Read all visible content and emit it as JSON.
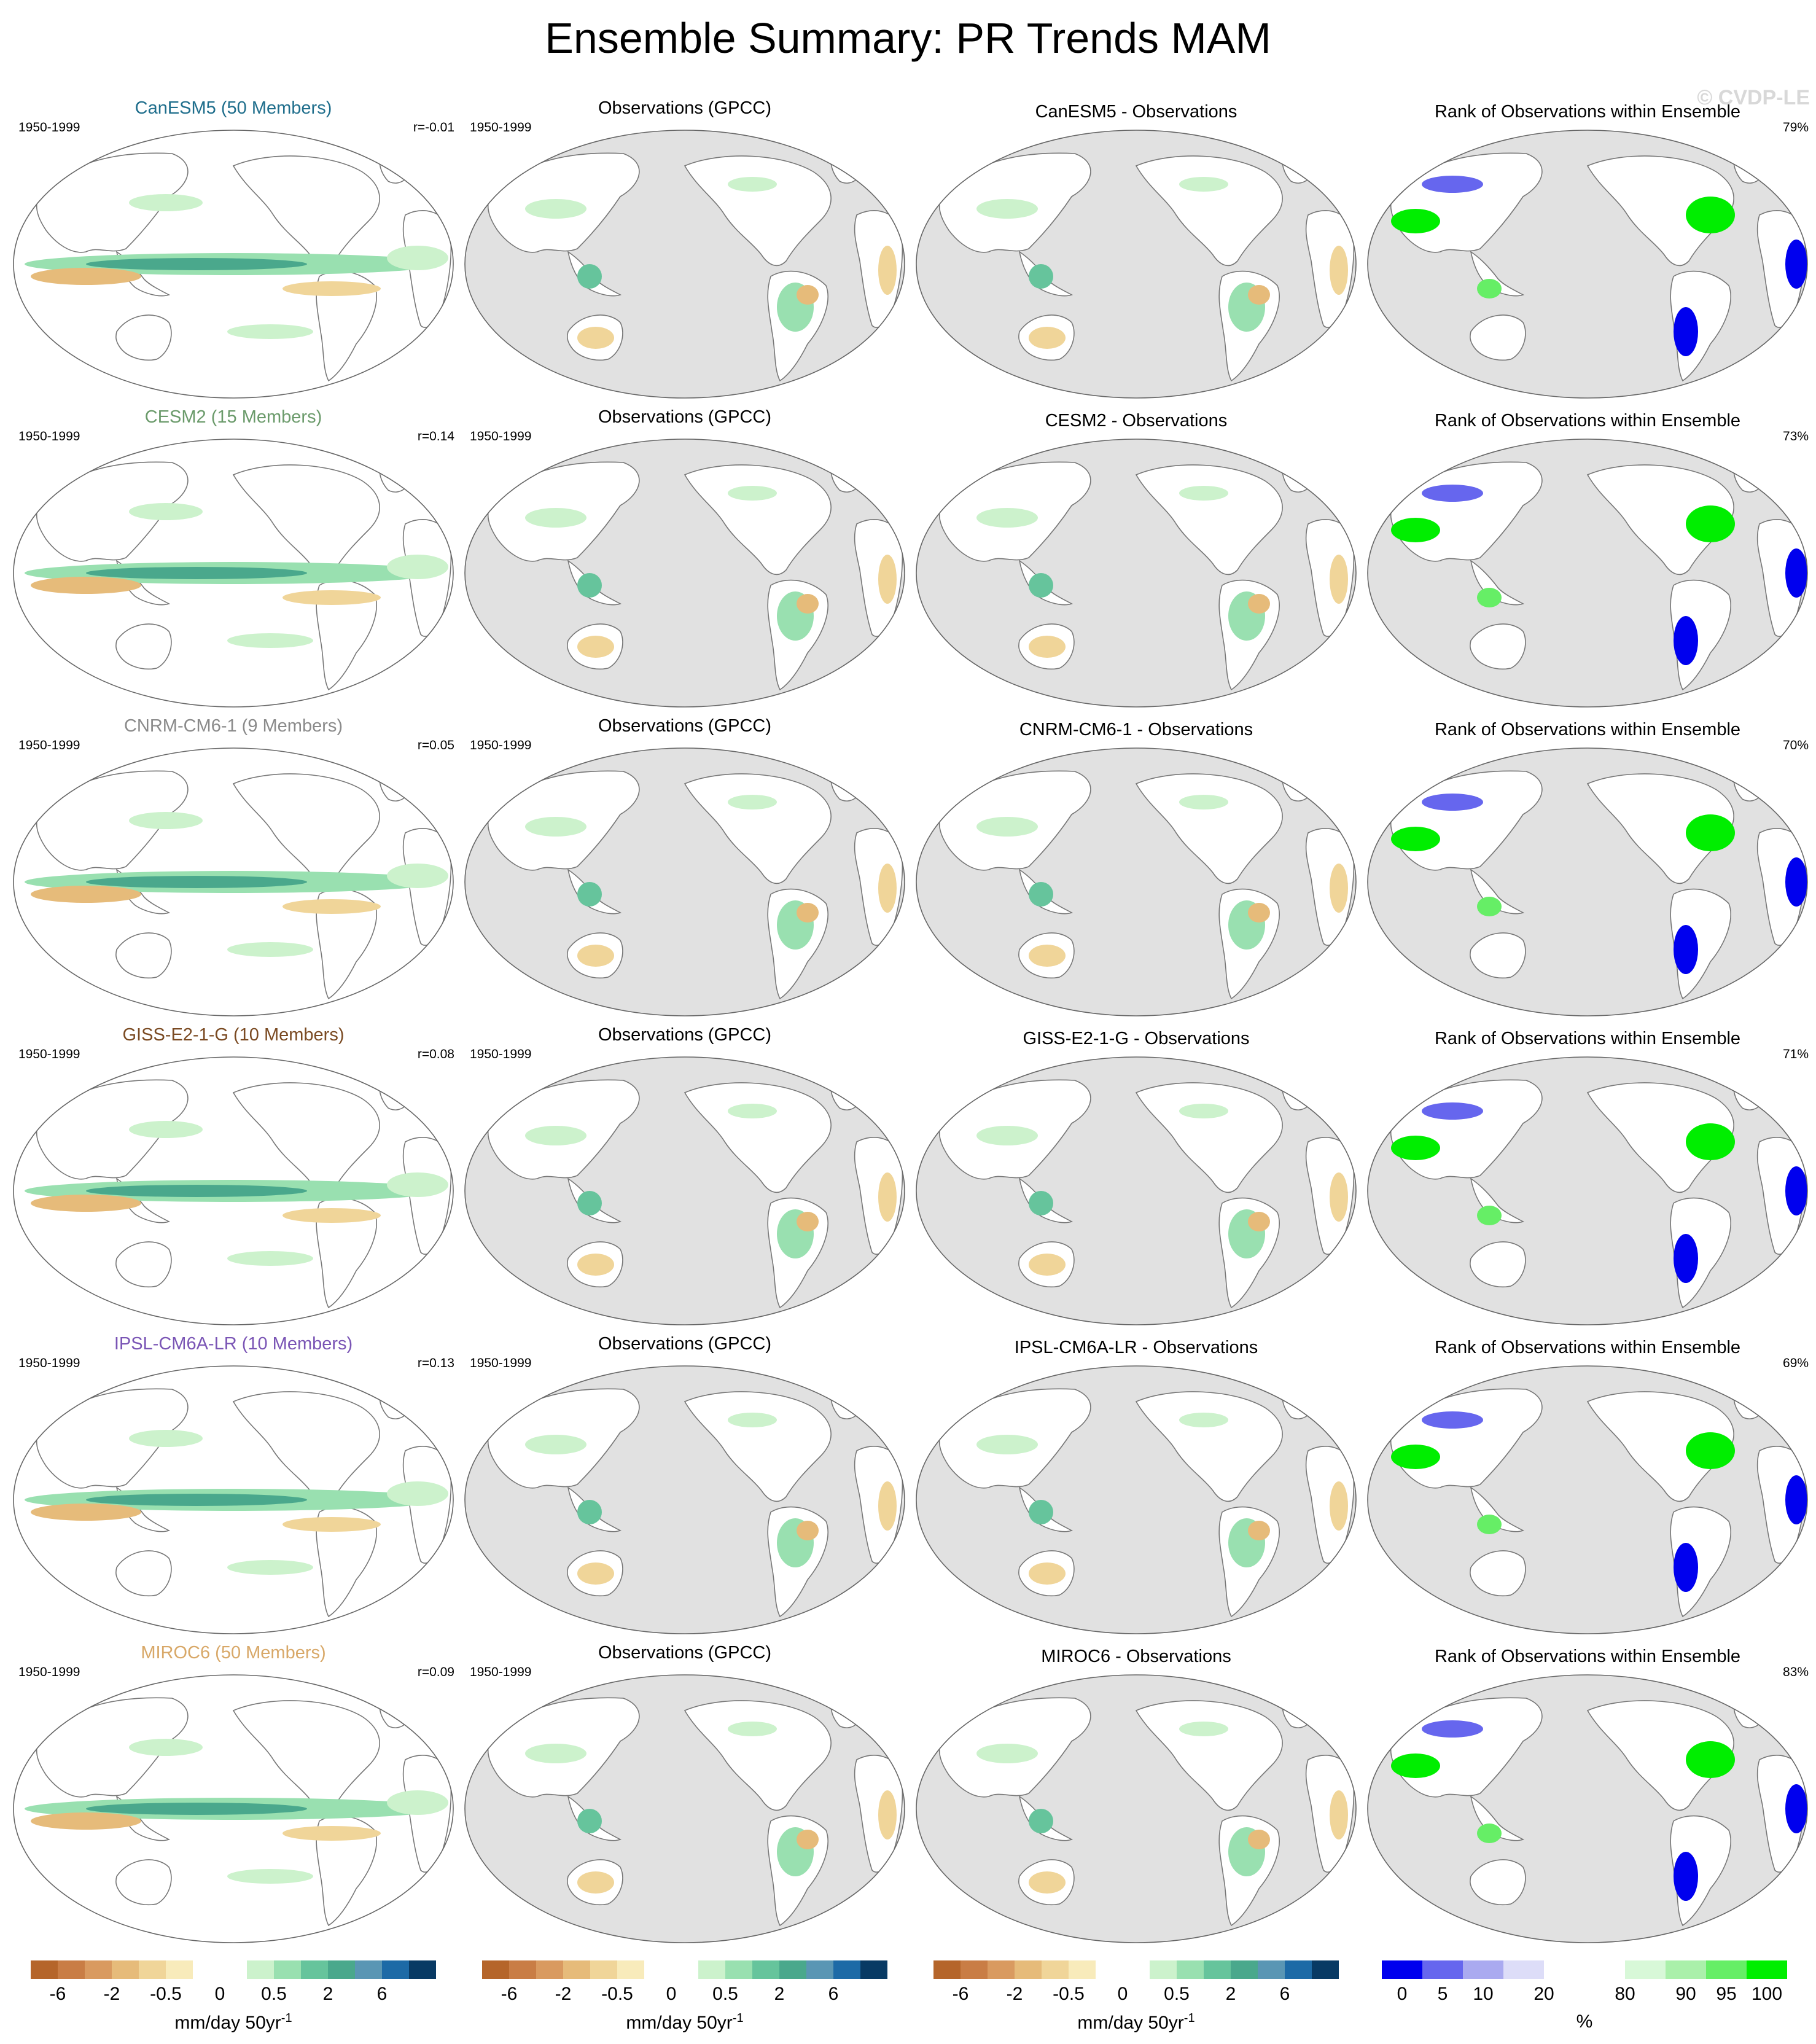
{
  "title": "Ensemble Summary: PR Trends MAM",
  "watermark": "© CVDP-LE",
  "period": "1950-1999",
  "obs_title": "Observations (GPCC)",
  "rank_title": "Rank of Observations within Ensemble",
  "rows": [
    {
      "model_title": "CanESM5 (50 Members)",
      "model_color": "#1f6e8c",
      "r": "r=-0.01",
      "diff_title": "CanESM5 - Observations",
      "rank_pct": "79%"
    },
    {
      "model_title": "CESM2 (15 Members)",
      "model_color": "#6a9a6a",
      "r": "r=0.14",
      "diff_title": "CESM2 - Observations",
      "rank_pct": "73%"
    },
    {
      "model_title": "CNRM-CM6-1 (9 Members)",
      "model_color": "#8a8a8a",
      "r": "r=0.05",
      "diff_title": "CNRM-CM6-1 - Observations",
      "rank_pct": "70%"
    },
    {
      "model_title": "GISS-E2-1-G (10 Members)",
      "model_color": "#7a4a22",
      "r": "r=0.08",
      "diff_title": "GISS-E2-1-G - Observations",
      "rank_pct": "71%"
    },
    {
      "model_title": "IPSL-CM6A-LR (10 Members)",
      "model_color": "#7a55b5",
      "r": "r=0.13",
      "diff_title": "IPSL-CM6A-LR - Observations",
      "rank_pct": "69%"
    },
    {
      "model_title": "MIROC6 (50 Members)",
      "model_color": "#d8a868",
      "r": "r=0.09",
      "diff_title": "MIROC6 - Observations",
      "rank_pct": "83%"
    }
  ],
  "trend_colorbar": {
    "label": "mm/day 50yr",
    "label_sup": "-1",
    "colors": [
      "#b5652a",
      "#c97d45",
      "#d99a60",
      "#e6bb7a",
      "#f0d599",
      "#f8ebbb",
      "#ffffff",
      "#ffffff",
      "#ccf2cc",
      "#99e0b0",
      "#66c49c",
      "#4aa88c",
      "#5a96b4",
      "#1d6aa6",
      "#083a64"
    ],
    "ticks": [
      "-6",
      "-2",
      "-0.5",
      "0",
      "0.5",
      "2",
      "6"
    ]
  },
  "rank_colorbar": {
    "label": "%",
    "colors": [
      "#0000ee",
      "#6666ee",
      "#aaaaf0",
      "#ddddf8",
      "#ffffff",
      "#ffffff",
      "#d8f8d8",
      "#aaf0aa",
      "#66ee66",
      "#00ee00"
    ],
    "ticks": [
      "0",
      "5",
      "10",
      "20",
      "80",
      "90",
      "95",
      "100"
    ]
  }
}
